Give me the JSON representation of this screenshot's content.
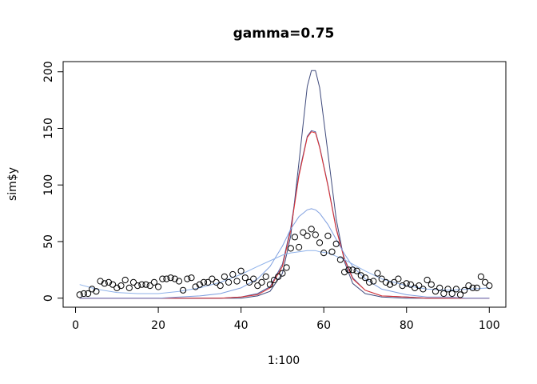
{
  "chart_data": {
    "type": "scatter",
    "title": "gamma=0.75",
    "xlabel": "1:100",
    "ylabel": "sim$y",
    "xlim": [
      -3,
      104
    ],
    "ylim": [
      -8,
      209
    ],
    "xticks": [
      0,
      20,
      40,
      60,
      80,
      100
    ],
    "yticks": [
      0,
      50,
      100,
      150,
      200
    ],
    "xtick_labels": [
      "0",
      "20",
      "40",
      "60",
      "80",
      "100"
    ],
    "ytick_labels": [
      "0",
      "50",
      "100",
      "150",
      "200"
    ],
    "grid": false,
    "legend": "none",
    "points": {
      "marker": "open-circle",
      "color": "#000000",
      "x": [
        1,
        2,
        3,
        4,
        5,
        6,
        7,
        8,
        9,
        10,
        11,
        12,
        13,
        14,
        15,
        16,
        17,
        18,
        19,
        20,
        21,
        22,
        23,
        24,
        25,
        26,
        27,
        28,
        29,
        30,
        31,
        32,
        33,
        34,
        35,
        36,
        37,
        38,
        39,
        40,
        41,
        42,
        43,
        44,
        45,
        46,
        47,
        48,
        49,
        50,
        51,
        52,
        53,
        54,
        55,
        56,
        57,
        58,
        59,
        60,
        61,
        62,
        63,
        64,
        65,
        66,
        67,
        68,
        69,
        70,
        71,
        72,
        73,
        74,
        75,
        76,
        77,
        78,
        79,
        80,
        81,
        82,
        83,
        84,
        85,
        86,
        87,
        88,
        89,
        90,
        91,
        92,
        93,
        94,
        95,
        96,
        97,
        98,
        99,
        100
      ],
      "y": [
        3,
        4,
        4,
        8,
        6,
        15,
        13,
        14,
        12,
        9,
        11,
        16,
        9,
        14,
        11,
        12,
        12,
        11,
        14,
        10,
        17,
        17,
        18,
        17,
        15,
        7,
        17,
        18,
        10,
        12,
        14,
        14,
        17,
        14,
        11,
        19,
        14,
        21,
        15,
        24,
        18,
        14,
        17,
        11,
        14,
        19,
        12,
        16,
        19,
        22,
        27,
        44,
        54,
        45,
        58,
        55,
        61,
        56,
        49,
        40,
        55,
        41,
        48,
        34,
        23,
        25,
        25,
        24,
        20,
        18,
        14,
        15,
        22,
        17,
        14,
        12,
        14,
        17,
        11,
        13,
        12,
        9,
        11,
        8,
        16,
        12,
        6,
        9,
        4,
        8,
        4,
        8,
        3,
        7,
        11,
        9,
        9,
        19,
        14,
        11
      ]
    },
    "series": [
      {
        "color": "#3f4a7c",
        "x": [
          1,
          5,
          10,
          15,
          20,
          25,
          30,
          35,
          40,
          44,
          47,
          50,
          52,
          54,
          56,
          57,
          58,
          59,
          61,
          63,
          65,
          67,
          70,
          74,
          80,
          85,
          90,
          95,
          100
        ],
        "y": [
          0,
          0,
          0,
          0,
          0,
          0,
          0,
          0,
          0,
          2,
          6,
          22,
          55,
          120,
          187,
          201,
          201,
          186,
          128,
          70,
          32,
          13,
          4,
          1,
          0,
          0,
          0,
          0,
          0
        ]
      },
      {
        "color": "#4a5a9c",
        "x": [
          1,
          5,
          10,
          15,
          20,
          25,
          30,
          35,
          40,
          44,
          47,
          50,
          52,
          54,
          56,
          57,
          58,
          59,
          61,
          63,
          65,
          67,
          70,
          74,
          80,
          85,
          90,
          95,
          100
        ],
        "y": [
          0,
          0,
          0,
          0,
          0,
          0,
          0,
          0,
          1,
          4,
          10,
          30,
          62,
          110,
          143,
          148,
          147,
          134,
          100,
          62,
          35,
          18,
          7,
          2,
          1,
          0,
          0,
          0,
          0
        ]
      },
      {
        "color": "#e03030",
        "x": [
          1,
          5,
          10,
          15,
          20,
          25,
          30,
          35,
          40,
          44,
          47,
          50,
          52,
          54,
          56,
          57,
          58,
          59,
          61,
          63,
          65,
          67,
          70,
          74,
          80,
          85,
          90,
          95,
          100
        ],
        "y": [
          0,
          0,
          0,
          0,
          0,
          0,
          0,
          0,
          1,
          3,
          9,
          28,
          60,
          108,
          142,
          147,
          146,
          133,
          99,
          61,
          34,
          17,
          7,
          2,
          1,
          0,
          0,
          0,
          0
        ]
      },
      {
        "color": "#7f9fdf",
        "x": [
          1,
          5,
          10,
          15,
          20,
          25,
          30,
          35,
          40,
          44,
          47,
          50,
          52,
          54,
          56,
          57,
          58,
          59,
          61,
          63,
          65,
          67,
          70,
          74,
          80,
          85,
          90,
          95,
          100
        ],
        "y": [
          0,
          0,
          0,
          0,
          0,
          1,
          2,
          4,
          9,
          17,
          28,
          46,
          61,
          72,
          78,
          79,
          78,
          75,
          65,
          52,
          39,
          28,
          17,
          8,
          3,
          1,
          1,
          0,
          0
        ]
      },
      {
        "color": "#8fb2ea",
        "x": [
          1,
          5,
          10,
          15,
          20,
          25,
          30,
          35,
          40,
          44,
          47,
          50,
          52,
          54,
          56,
          57,
          58,
          59,
          61,
          63,
          65,
          67,
          70,
          74,
          80,
          85,
          90,
          95,
          100
        ],
        "y": [
          12,
          8,
          5,
          4,
          4,
          6,
          9,
          14,
          21,
          28,
          33,
          38,
          40,
          41,
          42,
          42,
          42,
          41,
          40,
          37,
          34,
          30,
          24,
          17,
          11,
          8,
          7,
          8,
          9
        ]
      }
    ]
  }
}
